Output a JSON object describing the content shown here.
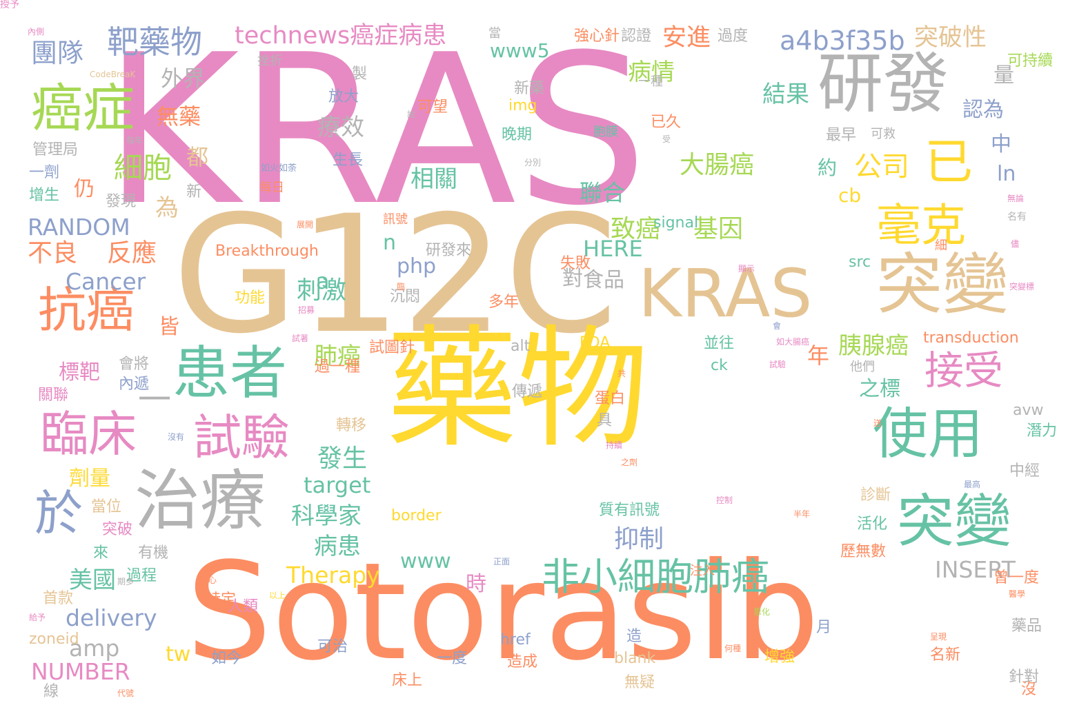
{
  "palette": {
    "pink": "#e78ac3",
    "tan": "#e5c494",
    "orange": "#fc8d62",
    "yellow": "#ffd92f",
    "green": "#a6d854",
    "teal": "#66c2a5",
    "blue": "#8da0cb",
    "gray": "#b3b3b3"
  },
  "words": [
    {
      "text": "KRAS",
      "color": "pink"
    },
    {
      "text": "G12C",
      "color": "tan"
    },
    {
      "text": "藥物",
      "color": "yellow"
    },
    {
      "text": "Sotorasib",
      "color": "orange"
    },
    {
      "text": "KRAS",
      "color": "tan"
    },
    {
      "text": "突變",
      "color": "tan"
    },
    {
      "text": "研發",
      "color": "gray"
    },
    {
      "text": "治療",
      "color": "gray"
    },
    {
      "text": "突變",
      "color": "teal"
    },
    {
      "text": "使用",
      "color": "teal"
    },
    {
      "text": "患者",
      "color": "teal"
    },
    {
      "text": "癌症",
      "color": "green"
    },
    {
      "text": "臨床",
      "color": "pink"
    },
    {
      "text": "試驗",
      "color": "pink"
    },
    {
      "text": "抗癌",
      "color": "orange"
    },
    {
      "text": "於",
      "color": "blue"
    },
    {
      "text": "毫克",
      "color": "yellow"
    },
    {
      "text": "接受",
      "color": "pink"
    },
    {
      "text": "已",
      "color": "yellow"
    },
    {
      "text": "非小細胞",
      "color": "teal"
    },
    {
      "text": "肺癌",
      "color": "teal"
    },
    {
      "text": "靶藥物",
      "color": "blue"
    },
    {
      "text": "technews癌症病患",
      "color": "pink"
    },
    {
      "text": "a4b3f35b",
      "color": "blue"
    },
    {
      "text": "突破性",
      "color": "tan"
    },
    {
      "text": "安進",
      "color": "orange"
    },
    {
      "text": "團隊",
      "color": "blue"
    },
    {
      "text": "細胞",
      "color": "green"
    },
    {
      "text": "一",
      "color": "gray"
    },
    {
      "text": "公司",
      "color": "yellow"
    },
    {
      "text": "大腸癌",
      "color": "green"
    },
    {
      "text": "致癌",
      "color": "green"
    },
    {
      "text": "基因",
      "color": "green"
    },
    {
      "text": "不良",
      "color": "orange"
    },
    {
      "text": "反應",
      "color": "orange"
    },
    {
      "text": "RANDOM",
      "color": "blue"
    },
    {
      "text": "Cancer",
      "color": "blue"
    },
    {
      "text": "Therapy",
      "color": "yellow"
    },
    {
      "text": "delivery",
      "color": "blue"
    },
    {
      "text": "amp",
      "color": "gray"
    },
    {
      "text": "NUMBER",
      "color": "pink"
    },
    {
      "text": "INSERT",
      "color": "gray"
    },
    {
      "text": "刺激",
      "color": "teal"
    },
    {
      "text": "發生",
      "color": "teal"
    },
    {
      "text": "科學家",
      "color": "teal"
    },
    {
      "text": "病患",
      "color": "teal"
    },
    {
      "text": "抑制",
      "color": "blue"
    },
    {
      "text": "胰腺癌",
      "color": "green"
    },
    {
      "text": "美國",
      "color": "teal"
    },
    {
      "text": "療效",
      "color": "gray"
    },
    {
      "text": "外界",
      "color": "gray"
    },
    {
      "text": "無藥",
      "color": "orange"
    },
    {
      "text": "仍",
      "color": "orange"
    },
    {
      "text": "為",
      "color": "tan"
    },
    {
      "text": "都",
      "color": "tan"
    },
    {
      "text": "相關",
      "color": "teal"
    },
    {
      "text": "聯合",
      "color": "teal"
    },
    {
      "text": "HERE",
      "color": "teal"
    },
    {
      "text": "病情",
      "color": "green"
    },
    {
      "text": "結果",
      "color": "teal"
    },
    {
      "text": "www5",
      "color": "teal"
    },
    {
      "text": "cb",
      "color": "yellow"
    },
    {
      "text": "php",
      "color": "blue"
    },
    {
      "text": "n",
      "color": "teal"
    },
    {
      "text": "a",
      "color": "teal"
    },
    {
      "text": "ln",
      "color": "blue"
    },
    {
      "text": "中",
      "color": "blue"
    },
    {
      "text": "量",
      "color": "gray"
    },
    {
      "text": "認為",
      "color": "blue"
    },
    {
      "text": "約",
      "color": "teal"
    },
    {
      "text": "對",
      "color": "gray"
    },
    {
      "text": "食品",
      "color": "gray"
    },
    {
      "text": "肺癌",
      "color": "green"
    },
    {
      "text": "年",
      "color": "orange"
    },
    {
      "text": "之標",
      "color": "teal"
    },
    {
      "text": "target",
      "color": "teal"
    },
    {
      "text": "標靶",
      "color": "pink"
    },
    {
      "text": "皆",
      "color": "orange"
    },
    {
      "text": "劑量",
      "color": "yellow"
    },
    {
      "text": "www",
      "color": "teal"
    },
    {
      "text": "時",
      "color": "pink"
    },
    {
      "text": "tw",
      "color": "yellow"
    },
    {
      "text": "製",
      "color": "gray"
    },
    {
      "text": "新藥",
      "color": "gray"
    },
    {
      "text": "晚期",
      "color": "teal"
    },
    {
      "text": "img",
      "color": "yellow"
    },
    {
      "text": "可望",
      "color": "orange"
    },
    {
      "text": "生長",
      "color": "blue"
    },
    {
      "text": "放大",
      "color": "blue"
    },
    {
      "text": "管理局",
      "color": "gray"
    },
    {
      "text": "一劑",
      "color": "blue"
    },
    {
      "text": "增生",
      "color": "teal"
    },
    {
      "text": "發現",
      "color": "gray"
    },
    {
      "text": "新",
      "color": "gray"
    },
    {
      "text": "Breakthrough",
      "color": "orange"
    },
    {
      "text": "signal",
      "color": "teal"
    },
    {
      "text": "研發來",
      "color": "gray"
    },
    {
      "text": "沉悶",
      "color": "gray"
    },
    {
      "text": "失敗",
      "color": "orange"
    },
    {
      "text": "功能",
      "color": "yellow"
    },
    {
      "text": "FDA",
      "color": "yellow"
    },
    {
      "text": "傳遞",
      "color": "gray"
    },
    {
      "text": "並往",
      "color": "teal"
    },
    {
      "text": "ck",
      "color": "teal"
    },
    {
      "text": "transduction",
      "color": "orange"
    },
    {
      "text": "src",
      "color": "teal"
    },
    {
      "text": "蛋白",
      "color": "orange"
    },
    {
      "text": "具",
      "color": "gray"
    },
    {
      "text": "多年",
      "color": "orange"
    },
    {
      "text": "alt",
      "color": "gray"
    },
    {
      "text": "試圖針",
      "color": "orange"
    },
    {
      "text": "過一種",
      "color": "orange"
    },
    {
      "text": "轉移",
      "color": "tan"
    },
    {
      "text": "avw",
      "color": "gray"
    },
    {
      "text": "潛力",
      "color": "teal"
    },
    {
      "text": "中經",
      "color": "gray"
    },
    {
      "text": "診斷",
      "color": "tan"
    },
    {
      "text": "活化",
      "color": "teal"
    },
    {
      "text": "歷無數",
      "color": "orange"
    },
    {
      "text": "曾一度",
      "color": "orange"
    },
    {
      "text": "藥品",
      "color": "gray"
    },
    {
      "text": "針對",
      "color": "gray"
    },
    {
      "text": "名新",
      "color": "orange"
    },
    {
      "text": "增強",
      "color": "yellow"
    },
    {
      "text": "月",
      "color": "blue"
    },
    {
      "text": "造",
      "color": "blue"
    },
    {
      "text": "blank",
      "color": "tan"
    },
    {
      "text": "無疑",
      "color": "tan"
    },
    {
      "text": "href",
      "color": "blue"
    },
    {
      "text": "造成",
      "color": "orange"
    },
    {
      "text": "一度",
      "color": "blue"
    },
    {
      "text": "如今",
      "color": "blue"
    },
    {
      "text": "可治",
      "color": "blue"
    },
    {
      "text": "人類",
      "color": "pink"
    },
    {
      "text": "特定",
      "color": "orange"
    },
    {
      "text": "線",
      "color": "gray"
    },
    {
      "text": "zoneid",
      "color": "tan"
    },
    {
      "text": "首款",
      "color": "tan"
    },
    {
      "text": "來",
      "color": "teal"
    },
    {
      "text": "有機",
      "color": "gray"
    },
    {
      "text": "突破",
      "color": "pink"
    },
    {
      "text": "當位",
      "color": "tan"
    },
    {
      "text": "過程",
      "color": "teal"
    },
    {
      "text": "會將",
      "color": "gray"
    },
    {
      "text": "內遞",
      "color": "blue"
    },
    {
      "text": "關聯",
      "color": "pink"
    },
    {
      "text": "border",
      "color": "yellow"
    },
    {
      "text": "注入",
      "color": "orange"
    },
    {
      "text": "質有訊號",
      "color": "teal"
    },
    {
      "text": "床上",
      "color": "orange"
    },
    {
      "text": "沒",
      "color": "orange"
    },
    {
      "text": "當",
      "color": "gray"
    },
    {
      "text": "強心針",
      "color": "orange"
    },
    {
      "text": "認證",
      "color": "gray"
    },
    {
      "text": "過度",
      "color": "gray"
    },
    {
      "text": "可持續",
      "color": "green"
    },
    {
      "text": "挫折",
      "color": "gray"
    },
    {
      "text": "內側",
      "color": "pink"
    },
    {
      "text": "CodeBreaK",
      "color": "tan"
    },
    {
      "text": "一種",
      "color": "gray"
    },
    {
      "text": "已久",
      "color": "orange"
    },
    {
      "text": "最早",
      "color": "gray"
    },
    {
      "text": "可救",
      "color": "gray"
    },
    {
      "text": "每年",
      "color": "gray"
    },
    {
      "text": "如火如荼",
      "color": "blue"
    },
    {
      "text": "每日",
      "color": "orange"
    },
    {
      "text": "訊號",
      "color": "orange"
    },
    {
      "text": "胞膜",
      "color": "teal"
    },
    {
      "text": "臨",
      "color": "orange"
    },
    {
      "text": "以上",
      "color": "yellow"
    },
    {
      "text": "說",
      "color": "gray"
    },
    {
      "text": "受",
      "color": "gray"
    },
    {
      "text": "分別",
      "color": "gray"
    },
    {
      "text": "展開",
      "color": "orange"
    },
    {
      "text": "無論",
      "color": "pink"
    },
    {
      "text": "名有",
      "color": "gray"
    },
    {
      "text": "細",
      "color": "orange"
    },
    {
      "text": "儘",
      "color": "pink"
    },
    {
      "text": "顯示",
      "color": "pink"
    },
    {
      "text": "突變標",
      "color": "pink"
    },
    {
      "text": "招募",
      "color": "pink"
    },
    {
      "text": "試著",
      "color": "pink"
    },
    {
      "text": "共",
      "color": "orange"
    },
    {
      "text": "沒有",
      "color": "blue"
    },
    {
      "text": "會",
      "color": "blue"
    },
    {
      "text": "如大腸癌",
      "color": "pink"
    },
    {
      "text": "試驗",
      "color": "pink"
    },
    {
      "text": "他們",
      "color": "gray"
    },
    {
      "text": "送",
      "color": "orange"
    },
    {
      "text": "持續",
      "color": "pink"
    },
    {
      "text": "之劑",
      "color": "orange"
    },
    {
      "text": "最高",
      "color": "blue"
    },
    {
      "text": "控制",
      "color": "pink"
    },
    {
      "text": "半年",
      "color": "orange"
    },
    {
      "text": "期多",
      "color": "gray"
    },
    {
      "text": "中心",
      "color": "orange"
    },
    {
      "text": "醫學",
      "color": "orange"
    },
    {
      "text": "給予",
      "color": "pink"
    },
    {
      "text": "恩化",
      "color": "green"
    },
    {
      "text": "何種",
      "color": "orange"
    },
    {
      "text": "呈現",
      "color": "orange"
    },
    {
      "text": "代號",
      "color": "orange"
    },
    {
      "text": "正面",
      "color": "blue"
    },
    {
      "text": "授予",
      "color": "pink"
    }
  ]
}
